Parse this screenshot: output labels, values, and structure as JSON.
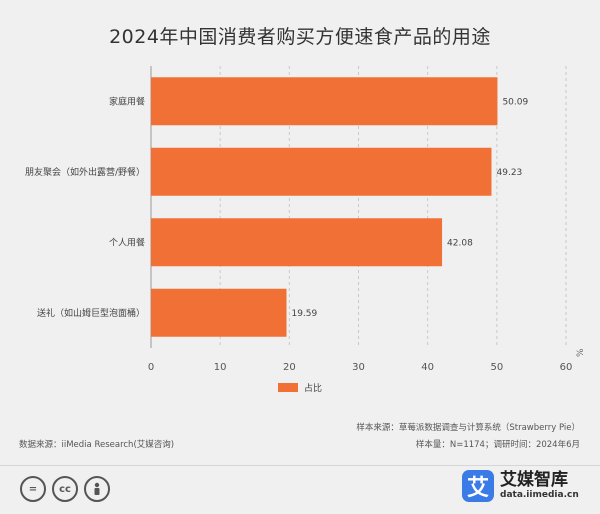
{
  "chart_data": {
    "type": "bar",
    "orientation": "horizontal",
    "title": "2024年中国消费者购买方便速食产品的用途",
    "categories": [
      "家庭用餐",
      "朋友聚会（如外出露营/野餐）",
      "个人用餐",
      "送礼（如山姆巨型泡面桶）"
    ],
    "series": [
      {
        "name": "占比",
        "values": [
          50.09,
          49.23,
          42.08,
          19.59
        ],
        "color": "#f07035"
      }
    ],
    "value_labels": [
      "50.09",
      "49.23",
      "42.08",
      "19.59"
    ],
    "xlim": [
      0,
      60
    ],
    "xticks": [
      "0",
      "10",
      "20",
      "30",
      "40",
      "50",
      "60"
    ],
    "xticks_values": [
      0,
      10,
      20,
      30,
      40,
      50,
      60
    ],
    "unit": "%",
    "grid": true,
    "legend": "bottom-center"
  },
  "notes": {
    "sample_source": "样本来源：草莓派数据调查与计算系统（Strawberry Pie）",
    "sample_size": "样本量：N=1174；调研时间：2024年6月",
    "data_source": "数据来源：iiMedia Research(艾媒咨询)"
  },
  "brand": {
    "logo_char": "艾",
    "name": "艾媒智库",
    "url": "data.iimedia.cn",
    "color": "#3a7be8"
  },
  "license_icons": [
    "=",
    "cc",
    "person"
  ]
}
